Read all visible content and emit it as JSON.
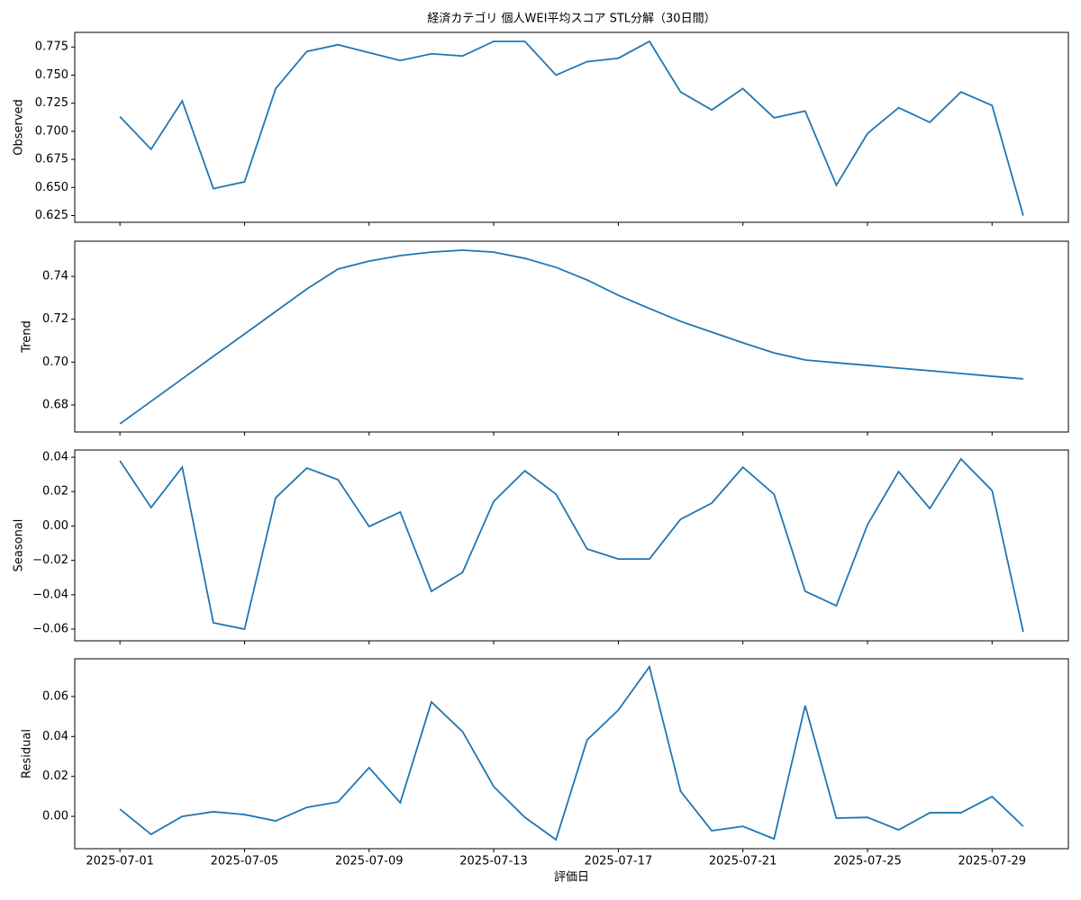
{
  "chart_data": [
    {
      "type": "line",
      "title": "経済カテゴリ 個人WEI平均スコア STL分解（30日間）",
      "ylabel": "Observed",
      "color": "#1f77b4",
      "x": [
        "2025-07-01",
        "2025-07-02",
        "2025-07-03",
        "2025-07-04",
        "2025-07-05",
        "2025-07-06",
        "2025-07-07",
        "2025-07-08",
        "2025-07-09",
        "2025-07-10",
        "2025-07-11",
        "2025-07-12",
        "2025-07-13",
        "2025-07-14",
        "2025-07-15",
        "2025-07-16",
        "2025-07-17",
        "2025-07-18",
        "2025-07-19",
        "2025-07-20",
        "2025-07-21",
        "2025-07-22",
        "2025-07-23",
        "2025-07-24",
        "2025-07-25",
        "2025-07-26",
        "2025-07-27",
        "2025-07-28",
        "2025-07-29",
        "2025-07-30"
      ],
      "xticks": [
        "2025-07-01",
        "2025-07-05",
        "2025-07-09",
        "2025-07-13",
        "2025-07-17",
        "2025-07-21",
        "2025-07-25",
        "2025-07-29"
      ],
      "values": [
        0.713,
        0.684,
        0.727,
        0.649,
        0.655,
        0.738,
        0.771,
        0.777,
        0.77,
        0.763,
        0.769,
        0.767,
        0.78,
        0.78,
        0.75,
        0.762,
        0.765,
        0.78,
        0.735,
        0.719,
        0.738,
        0.712,
        0.718,
        0.652,
        0.698,
        0.721,
        0.708,
        0.735,
        0.723,
        0.625
      ],
      "ylim": [
        0.619,
        0.788
      ],
      "yticks": [
        0.625,
        {
          "value": 0.65,
          "label": "0.650"
        },
        0.675,
        {
          "value": 0.7,
          "label": "0.700"
        },
        0.725,
        {
          "value": 0.75,
          "label": "0.750"
        },
        0.775
      ]
    },
    {
      "type": "line",
      "ylabel": "Trend",
      "color": "#1f77b4",
      "x": [
        "2025-07-01",
        "2025-07-02",
        "2025-07-03",
        "2025-07-04",
        "2025-07-05",
        "2025-07-06",
        "2025-07-07",
        "2025-07-08",
        "2025-07-09",
        "2025-07-10",
        "2025-07-11",
        "2025-07-12",
        "2025-07-13",
        "2025-07-14",
        "2025-07-15",
        "2025-07-16",
        "2025-07-17",
        "2025-07-18",
        "2025-07-19",
        "2025-07-20",
        "2025-07-21",
        "2025-07-22",
        "2025-07-23",
        "2025-07-24",
        "2025-07-25",
        "2025-07-26",
        "2025-07-27",
        "2025-07-28",
        "2025-07-29",
        "2025-07-30"
      ],
      "xticks": [
        "2025-07-01",
        "2025-07-05",
        "2025-07-09",
        "2025-07-13",
        "2025-07-17",
        "2025-07-21",
        "2025-07-25",
        "2025-07-29"
      ],
      "values": [
        0.6712,
        0.6817,
        0.6922,
        0.7027,
        0.7131,
        0.7236,
        0.7341,
        0.7434,
        0.7471,
        0.7497,
        0.7513,
        0.7522,
        0.7513,
        0.7484,
        0.7442,
        0.7383,
        0.7312,
        0.725,
        0.719,
        0.714,
        0.709,
        0.7043,
        0.701,
        0.6997,
        0.6985,
        0.6972,
        0.696,
        0.6947,
        0.6934,
        0.6922
      ],
      "ylim": [
        0.6674,
        0.7564
      ],
      "yticks": [
        0.68,
        {
          "value": 0.7,
          "label": "0.70"
        },
        0.72,
        0.74
      ]
    },
    {
      "type": "line",
      "ylabel": "Seasonal",
      "color": "#1f77b4",
      "x": [
        "2025-07-01",
        "2025-07-02",
        "2025-07-03",
        "2025-07-04",
        "2025-07-05",
        "2025-07-06",
        "2025-07-07",
        "2025-07-08",
        "2025-07-09",
        "2025-07-10",
        "2025-07-11",
        "2025-07-12",
        "2025-07-13",
        "2025-07-14",
        "2025-07-15",
        "2025-07-16",
        "2025-07-17",
        "2025-07-18",
        "2025-07-19",
        "2025-07-20",
        "2025-07-21",
        "2025-07-22",
        "2025-07-23",
        "2025-07-24",
        "2025-07-25",
        "2025-07-26",
        "2025-07-27",
        "2025-07-28",
        "2025-07-29",
        "2025-07-30"
      ],
      "xticks": [
        "2025-07-01",
        "2025-07-05",
        "2025-07-09",
        "2025-07-13",
        "2025-07-17",
        "2025-07-21",
        "2025-07-25",
        "2025-07-29"
      ],
      "values": [
        0.0379,
        0.0107,
        0.0342,
        -0.0563,
        -0.06,
        0.0164,
        0.0337,
        0.0269,
        -0.0003,
        0.0081,
        -0.038,
        -0.027,
        0.0143,
        0.0321,
        0.0185,
        -0.0134,
        -0.0192,
        -0.0192,
        0.0039,
        0.0133,
        0.0342,
        0.0185,
        -0.038,
        -0.0464,
        0.0007,
        0.0316,
        0.0102,
        0.039,
        0.0206,
        -0.0616
      ],
      "ylim": [
        -0.0668,
        0.0442
      ],
      "yticks": [
        {
          "value": -0.06,
          "label": "−0.06"
        },
        {
          "value": -0.04,
          "label": "−0.04"
        },
        {
          "value": -0.02,
          "label": "−0.02"
        },
        {
          "value": 0,
          "label": "0.00"
        },
        0.02,
        0.04
      ]
    },
    {
      "type": "line",
      "ylabel": "Residual",
      "xlabel": "評価日",
      "color": "#1f77b4",
      "x": [
        "2025-07-01",
        "2025-07-02",
        "2025-07-03",
        "2025-07-04",
        "2025-07-05",
        "2025-07-06",
        "2025-07-07",
        "2025-07-08",
        "2025-07-09",
        "2025-07-10",
        "2025-07-11",
        "2025-07-12",
        "2025-07-13",
        "2025-07-14",
        "2025-07-15",
        "2025-07-16",
        "2025-07-17",
        "2025-07-18",
        "2025-07-19",
        "2025-07-20",
        "2025-07-21",
        "2025-07-22",
        "2025-07-23",
        "2025-07-24",
        "2025-07-25",
        "2025-07-26",
        "2025-07-27",
        "2025-07-28",
        "2025-07-29",
        "2025-07-30"
      ],
      "xticks": [
        "2025-07-01",
        "2025-07-05",
        "2025-07-09",
        "2025-07-13",
        "2025-07-17",
        "2025-07-21",
        "2025-07-25",
        "2025-07-29"
      ],
      "values": [
        0.0036,
        -0.009,
        0,
        0.0023,
        0.0009,
        -0.0023,
        0.0045,
        0.0072,
        0.0244,
        0.0068,
        0.0573,
        0.0424,
        0.0149,
        -0.0005,
        -0.0117,
        0.0383,
        0.0532,
        0.0749,
        0.0126,
        -0.0072,
        -0.005,
        -0.0113,
        0.0555,
        -0.0009,
        -0.0005,
        -0.0068,
        0.0018,
        0.0018,
        0.0099,
        -0.005
      ],
      "ylim": [
        -0.0162,
        0.0789
      ],
      "yticks": [
        {
          "value": 0,
          "label": "0.00"
        },
        0.02,
        0.04,
        0.06
      ]
    }
  ]
}
